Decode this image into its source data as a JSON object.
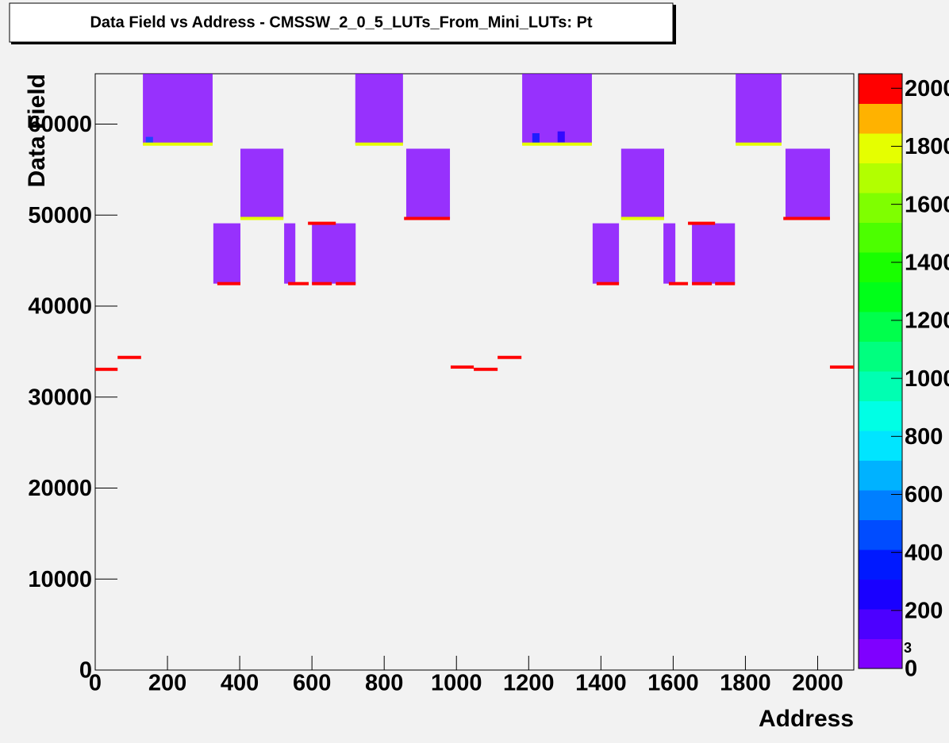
{
  "chart_data": {
    "type": "heatmap2d",
    "title": "Data Field vs Address - CMSSW_2_0_5_LUTs_From_Mini_LUTs: Pt",
    "x_label": "Address",
    "y_label": "Data Field",
    "xlim": [
      0,
      2100
    ],
    "xticks": [
      0,
      200,
      400,
      600,
      800,
      1000,
      1200,
      1400,
      1600,
      1800,
      2000
    ],
    "ylim": [
      0,
      65536
    ],
    "yticks": [
      0,
      10000,
      20000,
      30000,
      40000,
      50000,
      60000
    ],
    "zlim": [
      0,
      2050
    ],
    "zticks": [
      0,
      200,
      400,
      600,
      800,
      1000,
      1200,
      1400,
      1600,
      1800,
      2000
    ],
    "z_exponent": "3",
    "palette": [
      "#7f00ff",
      "#4c00ff",
      "#1900ff",
      "#0019ff",
      "#004cff",
      "#007fff",
      "#00b2ff",
      "#00e5ff",
      "#00ffe5",
      "#00ffb2",
      "#00ff7f",
      "#00ff4c",
      "#00ff19",
      "#19ff00",
      "#4cff00",
      "#7fff00",
      "#b2ff00",
      "#e5ff00",
      "#ffb200",
      "#ff0000"
    ],
    "cells": {
      "x0": [
        132,
        720,
        1182,
        1773,
        402,
        861,
        1456,
        1911,
        327,
        523,
        600,
        1377,
        1573,
        1652,
        140,
        1210,
        1280,
        0,
        62,
        984,
        1048,
        1114,
        2034,
        338,
        534,
        600,
        666,
        1388,
        1588,
        1652,
        1716,
        855,
        1905,
        132,
        720,
        1182,
        1773,
        402,
        1456,
        589,
        1641
      ],
      "x1": [
        325,
        852,
        1375,
        1900,
        521,
        982,
        1575,
        2034,
        402,
        554,
        721,
        1450,
        1606,
        1771,
        160,
        1230,
        1300,
        62,
        127,
        1048,
        1114,
        1180,
        2100,
        402,
        591,
        655,
        721,
        1450,
        1641,
        1707,
        1771,
        982,
        2034,
        325,
        852,
        1375,
        1900,
        521,
        1575,
        666,
        1716
      ],
      "y0": [
        57800,
        57800,
        57800,
        57800,
        49630,
        49630,
        49630,
        49630,
        42470,
        42470,
        42470,
        42470,
        42470,
        42470,
        57900,
        57900,
        58000,
        33050,
        34360,
        33300,
        33050,
        34360,
        33300,
        42470,
        42470,
        42470,
        42470,
        42470,
        42470,
        42470,
        42470,
        49630,
        49630,
        57800,
        57800,
        57800,
        57800,
        49630,
        49630,
        49100,
        49100
      ],
      "y1": [
        65536,
        65536,
        65536,
        65536,
        57300,
        57300,
        57300,
        57300,
        49100,
        49100,
        49100,
        49100,
        49100,
        49100,
        58600,
        59000,
        59200,
        33050,
        34360,
        33300,
        33050,
        34360,
        33300,
        42470,
        42470,
        42470,
        42470,
        42470,
        42470,
        42470,
        42470,
        49630,
        49630,
        57800,
        57800,
        57800,
        57800,
        49630,
        49630,
        49100,
        49100
      ],
      "z": [
        20,
        20,
        20,
        20,
        20,
        20,
        20,
        20,
        20,
        20,
        20,
        20,
        20,
        20,
        450,
        350,
        300,
        2000,
        2000,
        2000,
        2000,
        2000,
        2000,
        2000,
        2000,
        2000,
        2000,
        2000,
        2000,
        2000,
        2000,
        2000,
        2000,
        1750,
        1750,
        1750,
        1750,
        1750,
        1750,
        1950,
        1950
      ]
    }
  }
}
